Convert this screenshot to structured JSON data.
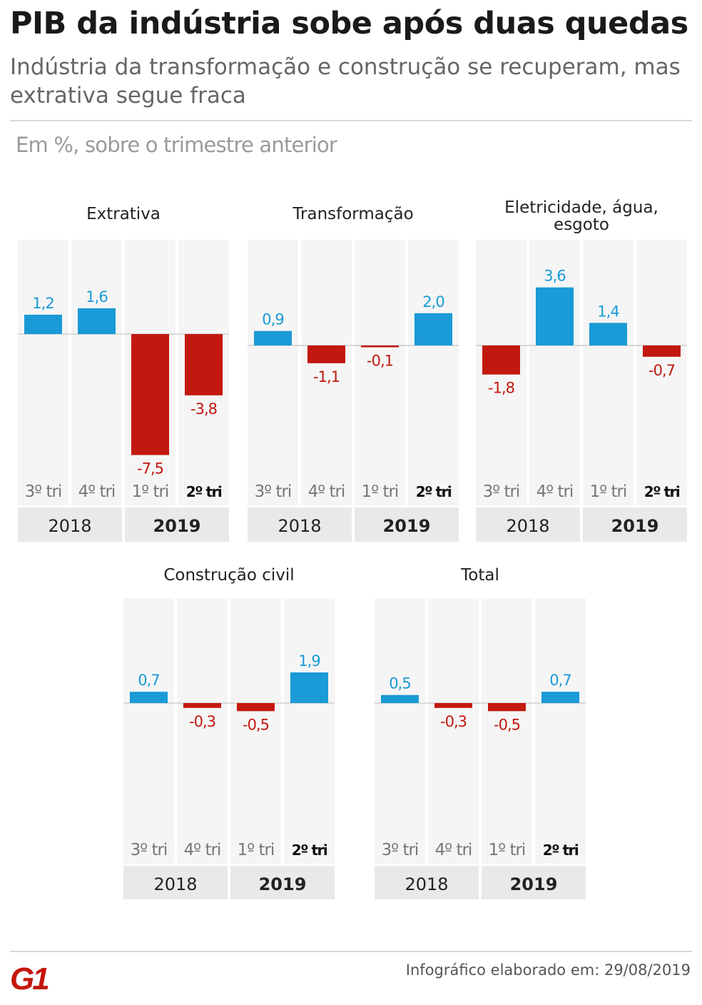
{
  "header": {
    "title": "PIB da indústria sobe após duas quedas",
    "subtitle": "Indústria da transformação e construção se recuperam, mas extrativa segue fraca",
    "unit_note": "Em %, sobre o trimestre anterior"
  },
  "footer": {
    "logo_text": "G1",
    "credit": "Infográfico elaborado em: 29/08/2019"
  },
  "colors": {
    "positive": "#1a9ad6",
    "negative": "#c3180f",
    "column_bg": "#f5f5f5",
    "year_bg": "#e9e9e9",
    "logo_red": "#c4170c"
  },
  "chart_data": [
    {
      "type": "bar",
      "title": [
        "Extrativa"
      ],
      "categories": [
        "3º tri",
        "4º tri",
        "1º tri",
        "2º tri"
      ],
      "years": [
        "2018",
        "2019"
      ],
      "values": [
        1.2,
        1.6,
        -7.5,
        -3.8
      ],
      "value_labels": [
        "1,2",
        "1,6",
        "-7,5",
        "-3,8"
      ],
      "highlight_category": 3,
      "highlight_year": 1,
      "ylabel": "%"
    },
    {
      "type": "bar",
      "title": [
        "Transformação"
      ],
      "categories": [
        "3º tri",
        "4º tri",
        "1º tri",
        "2º tri"
      ],
      "years": [
        "2018",
        "2019"
      ],
      "values": [
        0.9,
        -1.1,
        -0.1,
        2.0
      ],
      "value_labels": [
        "0,9",
        "-1,1",
        "-0,1",
        "2,0"
      ],
      "highlight_category": 3,
      "highlight_year": 1,
      "ylabel": "%"
    },
    {
      "type": "bar",
      "title": [
        "Eletricidade, água,",
        "esgoto"
      ],
      "categories": [
        "3º tri",
        "4º tri",
        "1º tri",
        "2º tri"
      ],
      "years": [
        "2018",
        "2019"
      ],
      "values": [
        -1.8,
        3.6,
        1.4,
        -0.7
      ],
      "value_labels": [
        "-1,8",
        "3,6",
        "1,4",
        "-0,7"
      ],
      "highlight_category": 3,
      "highlight_year": 1,
      "ylabel": "%"
    },
    {
      "type": "bar",
      "title": [
        "Construção civil"
      ],
      "categories": [
        "3º tri",
        "4º tri",
        "1º tri",
        "2º tri"
      ],
      "years": [
        "2018",
        "2019"
      ],
      "values": [
        0.7,
        -0.3,
        -0.5,
        1.9
      ],
      "value_labels": [
        "0,7",
        "-0,3",
        "-0,5",
        "1,9"
      ],
      "highlight_category": 3,
      "highlight_year": 1,
      "ylabel": "%"
    },
    {
      "type": "bar",
      "title": [
        "Total"
      ],
      "categories": [
        "3º tri",
        "4º tri",
        "1º tri",
        "2º tri"
      ],
      "years": [
        "2018",
        "2019"
      ],
      "values": [
        0.5,
        -0.3,
        -0.5,
        0.7
      ],
      "value_labels": [
        "0,5",
        "-0,3",
        "-0,5",
        "0,7"
      ],
      "highlight_category": 3,
      "highlight_year": 1,
      "ylabel": "%"
    }
  ]
}
